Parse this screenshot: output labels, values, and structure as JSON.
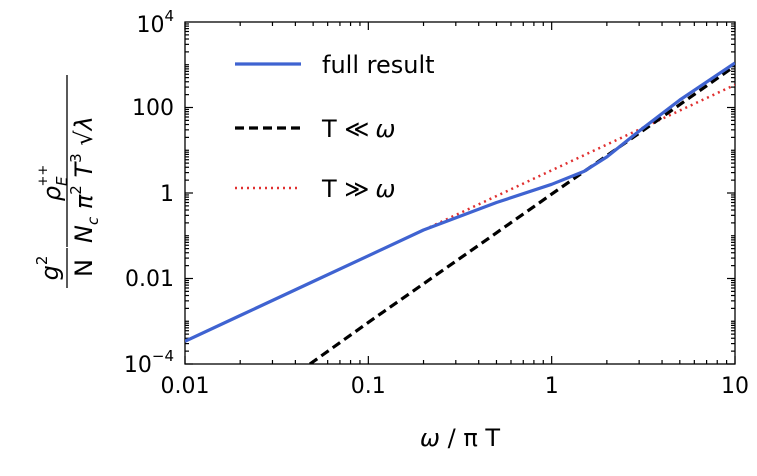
{
  "chart_data": {
    "type": "line",
    "xscale": "log",
    "yscale": "log",
    "xlim": [
      0.01,
      10
    ],
    "ylim": [
      0.0001,
      10000
    ],
    "x_ticks": [
      {
        "value": 0.01,
        "label": "0.01"
      },
      {
        "value": 0.1,
        "label": "0.1"
      },
      {
        "value": 1,
        "label": "1"
      },
      {
        "value": 10,
        "label": "10"
      }
    ],
    "y_ticks": [
      {
        "value": 0.0001,
        "base": "10",
        "exp": "−4"
      },
      {
        "value": 0.01,
        "label": "0.01"
      },
      {
        "value": 1,
        "label": "1"
      },
      {
        "value": 100,
        "label": "100"
      },
      {
        "value": 10000,
        "base": "10",
        "exp": "4"
      }
    ],
    "xlabel": {
      "omega": "ω",
      "rest": " / π T"
    },
    "ylabel": {
      "g": "g",
      "g_exp": "2",
      "rho": "ρ",
      "rho_sub": "E",
      "rho_sup": "++",
      "nc": "N",
      "nc_sub": "c",
      "pi": " π",
      "pi_exp": "2",
      "t": " T",
      "t_exp": "3",
      "sqrt": " √",
      "lambda": "λ"
    },
    "legend_position": "upper-left",
    "grid": false,
    "series": [
      {
        "name": "full result",
        "color": "#3f63d1",
        "style": "solid",
        "x": [
          0.01,
          0.02,
          0.05,
          0.1,
          0.2,
          0.5,
          1,
          1.5,
          2,
          3,
          5,
          10
        ],
        "y": [
          0.00034,
          0.00136,
          0.0085,
          0.034,
          0.136,
          0.6,
          1.6,
          3.2,
          7,
          28,
          150,
          1100
        ]
      },
      {
        "name": "T ≪ ω",
        "name_prefix": "T ",
        "name_symbol": "≪",
        "name_omega": "ω",
        "color": "#000000",
        "style": "dashed",
        "x": [
          0.048,
          0.1,
          0.2,
          0.5,
          1,
          2,
          3,
          5,
          10
        ],
        "y": [
          0.0001,
          0.00094,
          0.0075,
          0.117,
          0.94,
          7.5,
          25,
          117,
          940
        ]
      },
      {
        "name": "T ≫ ω",
        "name_prefix": "T ",
        "name_symbol": "≫",
        "name_omega": "ω",
        "color": "#e03030",
        "style": "dotted",
        "x": [
          0.01,
          0.1,
          1,
          10
        ],
        "y": [
          0.00034,
          0.034,
          3.4,
          340
        ]
      }
    ]
  }
}
